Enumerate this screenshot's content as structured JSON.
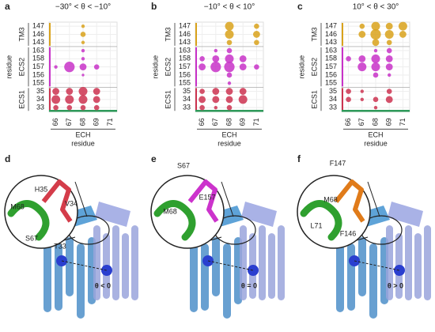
{
  "chart_data": [
    {
      "type": "bubble",
      "panel": "a",
      "title": "−30° < θ < −10°",
      "ylabel": "residue",
      "xlabel": "residue",
      "x_group": {
        "label": "ECH",
        "color": "#2e9a5a",
        "categories": [
          "66",
          "67",
          "68",
          "69",
          "71"
        ]
      },
      "y_groups": [
        {
          "label": "TM3",
          "color": "#d9a21b",
          "categories": [
            "147",
            "146",
            "143"
          ]
        },
        {
          "label": "ECS2",
          "color": "#c832c8",
          "categories": [
            "163",
            "158",
            "157",
            "156",
            "155"
          ]
        },
        {
          "label": "ECS1",
          "color": "#cc3350",
          "categories": [
            "35",
            "34",
            "33"
          ]
        }
      ],
      "series": [
        {
          "color": "#d9a21b",
          "x": [
            "68",
            "68",
            "68"
          ],
          "y": [
            "147",
            "146",
            "143"
          ],
          "size": [
            2,
            3,
            2
          ]
        },
        {
          "color": "#c832c8",
          "x": [
            "68",
            "68",
            "66",
            "67",
            "68",
            "69",
            "68"
          ],
          "y": [
            "163",
            "158",
            "157",
            "157",
            "157",
            "157",
            "156"
          ],
          "size": [
            2,
            2,
            2,
            6,
            4,
            3,
            1.5
          ]
        },
        {
          "color": "#cc3350",
          "x": [
            "66",
            "67",
            "68",
            "69",
            "66",
            "67",
            "68",
            "69",
            "66",
            "67",
            "68",
            "69"
          ],
          "y": [
            "35",
            "35",
            "35",
            "35",
            "34",
            "34",
            "34",
            "34",
            "33",
            "33",
            "33",
            "33"
          ],
          "size": [
            4,
            4,
            5,
            4,
            5,
            5,
            5,
            4,
            3,
            3,
            3,
            3
          ]
        }
      ]
    },
    {
      "type": "bubble",
      "panel": "b",
      "title": "−10° < θ < 10°",
      "ylabel": "residue",
      "xlabel": "residue",
      "x_group": {
        "label": "ECH",
        "color": "#2e9a5a",
        "categories": [
          "66",
          "67",
          "68",
          "69",
          "71"
        ]
      },
      "y_groups": [
        {
          "label": "TM3",
          "color": "#d9a21b",
          "categories": [
            "147",
            "146",
            "143"
          ]
        },
        {
          "label": "ECS2",
          "color": "#c832c8",
          "categories": [
            "163",
            "158",
            "157",
            "156",
            "155"
          ]
        },
        {
          "label": "ECS1",
          "color": "#cc3350",
          "categories": [
            "35",
            "34",
            "33"
          ]
        }
      ],
      "series": [
        {
          "color": "#d9a21b",
          "x": [
            "68",
            "71",
            "68",
            "71",
            "68",
            "71"
          ],
          "y": [
            "147",
            "147",
            "146",
            "146",
            "143",
            "143"
          ],
          "size": [
            5,
            3,
            5,
            4,
            3,
            3
          ]
        },
        {
          "color": "#c832c8",
          "x": [
            "67",
            "68",
            "66",
            "67",
            "68",
            "69",
            "66",
            "67",
            "68",
            "69",
            "71",
            "68",
            "68"
          ],
          "y": [
            "163",
            "163",
            "158",
            "158",
            "158",
            "158",
            "157",
            "157",
            "157",
            "157",
            "157",
            "156",
            "155"
          ],
          "size": [
            2,
            3,
            3,
            4,
            5,
            4,
            4,
            6,
            6,
            4,
            3,
            3,
            2
          ]
        },
        {
          "color": "#cc3350",
          "x": [
            "66",
            "67",
            "68",
            "69",
            "66",
            "67",
            "68",
            "69",
            "66",
            "67",
            "68"
          ],
          "y": [
            "35",
            "35",
            "35",
            "35",
            "34",
            "34",
            "34",
            "34",
            "33",
            "33",
            "33"
          ],
          "size": [
            3,
            4,
            4,
            4,
            4,
            4,
            4,
            5,
            3,
            2,
            3
          ]
        }
      ]
    },
    {
      "type": "bubble",
      "panel": "c",
      "title": "10° < θ < 30°",
      "ylabel": "residue",
      "xlabel": "residue",
      "x_group": {
        "label": "ECH",
        "color": "#2e9a5a",
        "categories": [
          "66",
          "67",
          "68",
          "69",
          "71"
        ]
      },
      "y_groups": [
        {
          "label": "TM3",
          "color": "#d9a21b",
          "categories": [
            "147",
            "146",
            "143"
          ]
        },
        {
          "label": "ECS2",
          "color": "#c832c8",
          "categories": [
            "163",
            "158",
            "157",
            "156",
            "155"
          ]
        },
        {
          "label": "ECS1",
          "color": "#cc3350",
          "categories": [
            "35",
            "34",
            "33"
          ]
        }
      ],
      "series": [
        {
          "color": "#d9a21b",
          "x": [
            "67",
            "68",
            "69",
            "71",
            "67",
            "68",
            "69",
            "71",
            "68",
            "69"
          ],
          "y": [
            "147",
            "147",
            "147",
            "147",
            "146",
            "146",
            "146",
            "146",
            "143",
            "143"
          ],
          "size": [
            3,
            5,
            4,
            5,
            4,
            6,
            5,
            4,
            4,
            3
          ]
        },
        {
          "color": "#c832c8",
          "x": [
            "68",
            "69",
            "66",
            "67",
            "68",
            "69",
            "67",
            "68",
            "69",
            "68",
            "69"
          ],
          "y": [
            "163",
            "163",
            "158",
            "158",
            "158",
            "158",
            "157",
            "157",
            "157",
            "156",
            "156"
          ],
          "size": [
            2,
            3,
            3,
            4,
            5,
            4,
            5,
            5,
            4,
            3,
            2
          ]
        },
        {
          "color": "#cc3350",
          "x": [
            "66",
            "67",
            "69",
            "66",
            "67",
            "68",
            "69",
            "68"
          ],
          "y": [
            "35",
            "35",
            "35",
            "34",
            "34",
            "34",
            "34",
            "33"
          ],
          "size": [
            3,
            2,
            3,
            3,
            2,
            3,
            4,
            2
          ]
        }
      ]
    }
  ],
  "structures": [
    {
      "panel": "d",
      "labels": [
        "H35",
        "M68",
        "V34",
        "S67",
        "T33"
      ],
      "angle": "θ < 0"
    },
    {
      "panel": "e",
      "labels": [
        "S67",
        "E157",
        "M68"
      ],
      "angle": "θ = 0"
    },
    {
      "panel": "f",
      "labels": [
        "F147",
        "M68",
        "L71",
        "F146"
      ],
      "angle": "θ > 0"
    }
  ]
}
